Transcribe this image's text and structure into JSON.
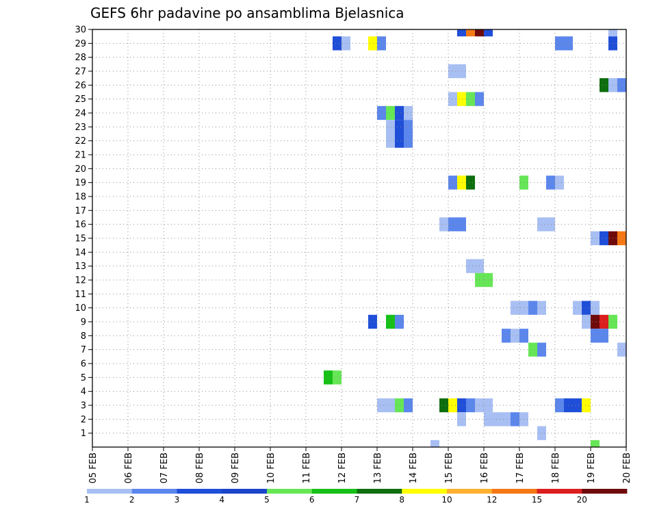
{
  "chart_data": {
    "type": "heatmap",
    "title": "GEFS 6hr padavine po ansamblima Bjelasnica",
    "x_tick_labels": [
      "05 FEB",
      "06 FEB",
      "07 FEB",
      "08 FEB",
      "09 FEB",
      "10 FEB",
      "11 FEB",
      "12 FEB",
      "13 FEB",
      "14 FEB",
      "15 FEB",
      "16 FEB",
      "17 FEB",
      "18 FEB",
      "19 FEB",
      "20 FEB"
    ],
    "x_range_days": [
      0,
      15
    ],
    "y_tick_labels": [
      "1",
      "2",
      "3",
      "4",
      "5",
      "6",
      "7",
      "8",
      "9",
      "10",
      "11",
      "12",
      "13",
      "14",
      "15",
      "16",
      "17",
      "18",
      "19",
      "20",
      "21",
      "22",
      "23",
      "24",
      "25",
      "26",
      "27",
      "28",
      "29",
      "30"
    ],
    "y_range": [
      0,
      30
    ],
    "grid": true,
    "colorbar": {
      "labels": [
        "1",
        "2",
        "3",
        "4",
        "5",
        "6",
        "7",
        "8",
        "10",
        "12",
        "15",
        "20"
      ],
      "colors": [
        "#a8bff3",
        "#5b86ec",
        "#1f4ed8",
        "#1b45c8",
        "#66e656",
        "#16c016",
        "#0e6e0e",
        "#ffff00",
        "#ffb030",
        "#f57814",
        "#dc1e1e",
        "#6e0a0a"
      ]
    },
    "cells": [
      {
        "member": 30,
        "day": 10.5,
        "level": 2
      },
      {
        "member": 30,
        "day": 10.75,
        "level": 9
      },
      {
        "member": 30,
        "day": 11.0,
        "level": 11
      },
      {
        "member": 30,
        "day": 11.25,
        "level": 2
      },
      {
        "member": 30,
        "day": 14.75,
        "level": 0
      },
      {
        "member": 29,
        "day": 7.0,
        "level": 2
      },
      {
        "member": 29,
        "day": 7.25,
        "level": 0
      },
      {
        "member": 29,
        "day": 8.0,
        "level": 7
      },
      {
        "member": 29,
        "day": 8.25,
        "level": 1
      },
      {
        "member": 29,
        "day": 13.25,
        "level": 1
      },
      {
        "member": 29,
        "day": 13.5,
        "level": 1
      },
      {
        "member": 29,
        "day": 14.75,
        "level": 2
      },
      {
        "member": 27,
        "day": 10.25,
        "level": 0
      },
      {
        "member": 27,
        "day": 10.5,
        "level": 0
      },
      {
        "member": 26,
        "day": 14.5,
        "level": 6
      },
      {
        "member": 26,
        "day": 14.75,
        "level": 0
      },
      {
        "member": 26,
        "day": 15.0,
        "level": 1
      },
      {
        "member": 25,
        "day": 10.25,
        "level": 0
      },
      {
        "member": 25,
        "day": 10.5,
        "level": 7
      },
      {
        "member": 25,
        "day": 10.75,
        "level": 4
      },
      {
        "member": 25,
        "day": 11.0,
        "level": 1
      },
      {
        "member": 24,
        "day": 8.25,
        "level": 1
      },
      {
        "member": 24,
        "day": 8.5,
        "level": 4
      },
      {
        "member": 24,
        "day": 8.75,
        "level": 2
      },
      {
        "member": 24,
        "day": 9.0,
        "level": 0
      },
      {
        "member": 23,
        "day": 8.5,
        "level": 0
      },
      {
        "member": 23,
        "day": 8.75,
        "level": 2
      },
      {
        "member": 23,
        "day": 9.0,
        "level": 1
      },
      {
        "member": 22,
        "day": 8.5,
        "level": 0
      },
      {
        "member": 22,
        "day": 8.75,
        "level": 2
      },
      {
        "member": 22,
        "day": 9.0,
        "level": 1
      },
      {
        "member": 19,
        "day": 10.25,
        "level": 1
      },
      {
        "member": 19,
        "day": 10.5,
        "level": 7
      },
      {
        "member": 19,
        "day": 10.75,
        "level": 6
      },
      {
        "member": 19,
        "day": 12.25,
        "level": 4
      },
      {
        "member": 19,
        "day": 13.0,
        "level": 1
      },
      {
        "member": 19,
        "day": 13.25,
        "level": 0
      },
      {
        "member": 16,
        "day": 10.0,
        "level": 0
      },
      {
        "member": 16,
        "day": 10.25,
        "level": 1
      },
      {
        "member": 16,
        "day": 10.5,
        "level": 1
      },
      {
        "member": 16,
        "day": 12.75,
        "level": 0
      },
      {
        "member": 16,
        "day": 13.0,
        "level": 0
      },
      {
        "member": 15,
        "day": 14.25,
        "level": 0
      },
      {
        "member": 15,
        "day": 14.5,
        "level": 2
      },
      {
        "member": 15,
        "day": 14.75,
        "level": 11
      },
      {
        "member": 15,
        "day": 15.0,
        "level": 9
      },
      {
        "member": 13,
        "day": 10.75,
        "level": 0
      },
      {
        "member": 13,
        "day": 11.0,
        "level": 0
      },
      {
        "member": 12,
        "day": 11.0,
        "level": 4
      },
      {
        "member": 12,
        "day": 11.25,
        "level": 4
      },
      {
        "member": 10,
        "day": 12.0,
        "level": 0
      },
      {
        "member": 10,
        "day": 12.25,
        "level": 0
      },
      {
        "member": 10,
        "day": 12.5,
        "level": 1
      },
      {
        "member": 10,
        "day": 12.75,
        "level": 0
      },
      {
        "member": 10,
        "day": 13.75,
        "level": 0
      },
      {
        "member": 10,
        "day": 14.0,
        "level": 2
      },
      {
        "member": 10,
        "day": 14.25,
        "level": 0
      },
      {
        "member": 9,
        "day": 8.0,
        "level": 2
      },
      {
        "member": 9,
        "day": 8.5,
        "level": 5
      },
      {
        "member": 9,
        "day": 8.75,
        "level": 1
      },
      {
        "member": 9,
        "day": 14.0,
        "level": 0
      },
      {
        "member": 9,
        "day": 14.25,
        "level": 11
      },
      {
        "member": 9,
        "day": 14.5,
        "level": 10
      },
      {
        "member": 9,
        "day": 14.75,
        "level": 4
      },
      {
        "member": 8,
        "day": 11.75,
        "level": 1
      },
      {
        "member": 8,
        "day": 12.0,
        "level": 0
      },
      {
        "member": 8,
        "day": 12.25,
        "level": 1
      },
      {
        "member": 8,
        "day": 14.25,
        "level": 1
      },
      {
        "member": 8,
        "day": 14.5,
        "level": 1
      },
      {
        "member": 7,
        "day": 12.5,
        "level": 4
      },
      {
        "member": 7,
        "day": 12.75,
        "level": 1
      },
      {
        "member": 7,
        "day": 15.0,
        "level": 0
      },
      {
        "member": 5,
        "day": 6.75,
        "level": 5
      },
      {
        "member": 5,
        "day": 7.0,
        "level": 4
      },
      {
        "member": 3,
        "day": 8.25,
        "level": 0
      },
      {
        "member": 3,
        "day": 8.5,
        "level": 0
      },
      {
        "member": 3,
        "day": 8.75,
        "level": 4
      },
      {
        "member": 3,
        "day": 9.0,
        "level": 1
      },
      {
        "member": 3,
        "day": 10.0,
        "level": 6
      },
      {
        "member": 3,
        "day": 10.25,
        "level": 7
      },
      {
        "member": 3,
        "day": 10.5,
        "level": 2
      },
      {
        "member": 3,
        "day": 10.75,
        "level": 1
      },
      {
        "member": 3,
        "day": 11.0,
        "level": 0
      },
      {
        "member": 3,
        "day": 11.25,
        "level": 0
      },
      {
        "member": 3,
        "day": 13.25,
        "level": 1
      },
      {
        "member": 3,
        "day": 13.5,
        "level": 2
      },
      {
        "member": 3,
        "day": 13.75,
        "level": 2
      },
      {
        "member": 3,
        "day": 14.0,
        "level": 7
      },
      {
        "member": 2,
        "day": 10.5,
        "level": 0
      },
      {
        "member": 2,
        "day": 11.25,
        "level": 0
      },
      {
        "member": 2,
        "day": 11.5,
        "level": 0
      },
      {
        "member": 2,
        "day": 11.75,
        "level": 0
      },
      {
        "member": 2,
        "day": 12.0,
        "level": 1
      },
      {
        "member": 2,
        "day": 12.25,
        "level": 0
      },
      {
        "member": 1,
        "day": 12.75,
        "level": 0
      },
      {
        "member": 0,
        "day": 9.75,
        "level": 0
      },
      {
        "member": 0,
        "day": 14.25,
        "level": 4
      }
    ]
  }
}
